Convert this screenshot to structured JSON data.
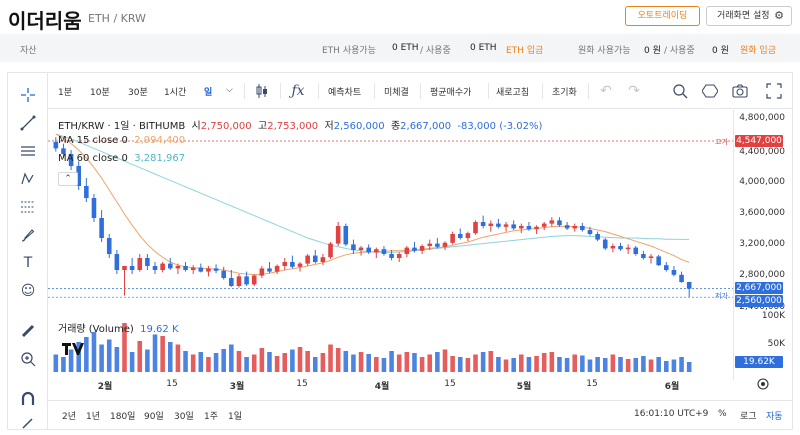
{
  "header": {
    "title": "이더리움",
    "pair": "ETH / KRW",
    "auto_trade_label": "오토트레이딩",
    "settings_label": "거래화면 설정"
  },
  "asset_bar": {
    "label": "자산",
    "eth_available_label": "ETH 사용가능",
    "eth_available_value": "0 ETH",
    "eth_in_use_label": "/ 사용중",
    "eth_in_use_value": "0 ETH",
    "eth_deposit_label": "ETH 입금",
    "krw_available_label": "원화 사용가능",
    "krw_available_value": "0 원",
    "krw_in_use_label": "/ 사용중",
    "krw_in_use_value": "0 원",
    "krw_deposit_label": "원화 입금"
  },
  "toolbar": {
    "intervals": [
      "1분",
      "10분",
      "30분",
      "1시간",
      "일"
    ],
    "active_interval": "일",
    "buttons": [
      "예측차트",
      "미체결",
      "평균매수가",
      "새로고침",
      "초기화"
    ]
  },
  "legend": {
    "symbol": "ETH/KRW · 1일 · BITHUMB",
    "open_label": "시",
    "open": "2,750,000",
    "high_label": "고",
    "high": "2,753,000",
    "low_label": "저",
    "low": "2,560,000",
    "close_label": "종",
    "close": "2,667,000",
    "change": "-83,000 (-3.02%)",
    "ma15_label": "MA 15 close 0",
    "ma15_value": "2,994,400",
    "ma60_label": "MA 60 close 0",
    "ma60_value": "3,281,967",
    "volume_label": "거래량 (Volume)",
    "volume_value": "19.62 K"
  },
  "price_axis": {
    "ticks": [
      "4,800,000",
      "4,400,000",
      "4,000,000",
      "3,600,000",
      "3,200,000",
      "2,800,000",
      "2,400,000"
    ],
    "high_tag": "4,547,000",
    "high_tag_label": "고가",
    "close_tag": "2,667,000",
    "low_tag": "2,560,000",
    "low_tag_label": "저가"
  },
  "volume_axis": {
    "ticks": [
      "100K",
      "50K"
    ],
    "current_tag": "19.62K"
  },
  "time_axis": {
    "ticks": [
      "2월",
      "15",
      "3월",
      "15",
      "4월",
      "15",
      "5월",
      "15",
      "6월"
    ]
  },
  "bottom_bar": {
    "ranges": [
      "2년",
      "1년",
      "180일",
      "90일",
      "30일",
      "1주",
      "1일"
    ],
    "clock": "16:01:10 UTC+9",
    "percent_label": "%",
    "log_label": "로그",
    "auto_label": "자동"
  },
  "colors": {
    "up": "#e04141",
    "down": "#2f6fdc",
    "accent": "#e8821e",
    "ma15": "#f0a46a",
    "ma60": "#8fd3dc"
  },
  "chart_data": {
    "type": "candlestick",
    "series_name": "ETH/KRW",
    "ylim": [
      2400000,
      4800000
    ],
    "candles": [
      [
        4500000,
        4560000,
        4380000,
        4420000
      ],
      [
        4420000,
        4480000,
        4300000,
        4350000
      ],
      [
        4350000,
        4400000,
        4150000,
        4200000
      ],
      [
        4200000,
        4260000,
        3900000,
        3950000
      ],
      [
        3950000,
        4050000,
        3750000,
        3800000
      ],
      [
        3800000,
        3850000,
        3500000,
        3550000
      ],
      [
        3550000,
        3650000,
        3250000,
        3300000
      ],
      [
        3300000,
        3350000,
        3050000,
        3100000
      ],
      [
        3100000,
        3150000,
        2850000,
        2900000
      ],
      [
        2900000,
        2950000,
        2580000,
        2950000
      ],
      [
        2950000,
        3050000,
        2850000,
        2900000
      ],
      [
        2900000,
        3100000,
        2880000,
        3050000
      ],
      [
        3050000,
        3100000,
        2900000,
        2950000
      ],
      [
        2950000,
        3000000,
        2850000,
        2900000
      ],
      [
        2900000,
        3000000,
        2870000,
        2980000
      ],
      [
        2980000,
        3050000,
        2900000,
        2920000
      ],
      [
        2920000,
        2980000,
        2850000,
        2950000
      ],
      [
        2950000,
        3000000,
        2880000,
        2900000
      ],
      [
        2900000,
        2960000,
        2850000,
        2930000
      ],
      [
        2930000,
        2980000,
        2870000,
        2880000
      ],
      [
        2880000,
        2950000,
        2820000,
        2920000
      ],
      [
        2920000,
        2970000,
        2860000,
        2890000
      ],
      [
        2890000,
        2940000,
        2780000,
        2800000
      ],
      [
        2800000,
        2900000,
        2690000,
        2700000
      ],
      [
        2700000,
        2850000,
        2680000,
        2820000
      ],
      [
        2820000,
        2880000,
        2700000,
        2720000
      ],
      [
        2720000,
        2850000,
        2700000,
        2830000
      ],
      [
        2830000,
        2950000,
        2800000,
        2920000
      ],
      [
        2920000,
        3000000,
        2860000,
        2880000
      ],
      [
        2880000,
        2970000,
        2850000,
        2950000
      ],
      [
        2950000,
        3050000,
        2900000,
        3000000
      ],
      [
        3000000,
        3080000,
        2920000,
        2940000
      ],
      [
        2940000,
        3000000,
        2880000,
        2980000
      ],
      [
        2980000,
        3100000,
        2950000,
        3080000
      ],
      [
        3080000,
        3150000,
        2980000,
        3000000
      ],
      [
        3000000,
        3100000,
        2960000,
        3060000
      ],
      [
        3060000,
        3250000,
        3040000,
        3230000
      ],
      [
        3230000,
        3500000,
        3200000,
        3450000
      ],
      [
        3450000,
        3480000,
        3200000,
        3220000
      ],
      [
        3220000,
        3280000,
        3100000,
        3150000
      ],
      [
        3150000,
        3200000,
        3080000,
        3180000
      ],
      [
        3180000,
        3220000,
        3100000,
        3120000
      ],
      [
        3120000,
        3180000,
        3050000,
        3160000
      ],
      [
        3160000,
        3200000,
        3080000,
        3100000
      ],
      [
        3100000,
        3150000,
        3020000,
        3050000
      ],
      [
        3050000,
        3120000,
        3000000,
        3100000
      ],
      [
        3100000,
        3200000,
        3060000,
        3180000
      ],
      [
        3180000,
        3250000,
        3120000,
        3140000
      ],
      [
        3140000,
        3220000,
        3100000,
        3200000
      ],
      [
        3200000,
        3280000,
        3150000,
        3230000
      ],
      [
        3230000,
        3300000,
        3170000,
        3190000
      ],
      [
        3190000,
        3260000,
        3150000,
        3240000
      ],
      [
        3240000,
        3380000,
        3220000,
        3350000
      ],
      [
        3350000,
        3420000,
        3280000,
        3300000
      ],
      [
        3300000,
        3380000,
        3260000,
        3360000
      ],
      [
        3360000,
        3520000,
        3340000,
        3500000
      ],
      [
        3500000,
        3580000,
        3420000,
        3450000
      ],
      [
        3450000,
        3520000,
        3380000,
        3480000
      ],
      [
        3480000,
        3540000,
        3420000,
        3440000
      ],
      [
        3440000,
        3500000,
        3380000,
        3470000
      ],
      [
        3470000,
        3520000,
        3400000,
        3420000
      ],
      [
        3420000,
        3480000,
        3360000,
        3450000
      ],
      [
        3450000,
        3500000,
        3390000,
        3410000
      ],
      [
        3410000,
        3460000,
        3350000,
        3440000
      ],
      [
        3440000,
        3500000,
        3400000,
        3480000
      ],
      [
        3480000,
        3560000,
        3440000,
        3520000
      ],
      [
        3520000,
        3560000,
        3440000,
        3460000
      ],
      [
        3460000,
        3500000,
        3400000,
        3420000
      ],
      [
        3420000,
        3480000,
        3380000,
        3450000
      ],
      [
        3450000,
        3490000,
        3380000,
        3400000
      ],
      [
        3400000,
        3440000,
        3330000,
        3350000
      ],
      [
        3350000,
        3380000,
        3260000,
        3280000
      ],
      [
        3280000,
        3300000,
        3150000,
        3170000
      ],
      [
        3170000,
        3230000,
        3120000,
        3200000
      ],
      [
        3200000,
        3240000,
        3140000,
        3160000
      ],
      [
        3160000,
        3220000,
        3100000,
        3180000
      ],
      [
        3180000,
        3200000,
        3080000,
        3100000
      ],
      [
        3100000,
        3140000,
        3030000,
        3050000
      ],
      [
        3050000,
        3100000,
        2980000,
        3070000
      ],
      [
        3070000,
        3090000,
        2950000,
        2960000
      ],
      [
        2960000,
        3000000,
        2880000,
        2900000
      ],
      [
        2900000,
        2950000,
        2820000,
        2840000
      ],
      [
        2840000,
        2880000,
        2740000,
        2750000
      ],
      [
        2750000,
        2753000,
        2560000,
        2667000
      ]
    ],
    "volume": [
      35,
      30,
      45,
      60,
      70,
      80,
      55,
      65,
      50,
      98,
      40,
      62,
      45,
      75,
      72,
      60,
      55,
      42,
      35,
      40,
      30,
      38,
      46,
      55,
      42,
      30,
      35,
      48,
      40,
      32,
      38,
      45,
      50,
      42,
      30,
      38,
      55,
      48,
      42,
      35,
      40,
      36,
      30,
      28,
      42,
      35,
      40,
      38,
      30,
      35,
      40,
      45,
      32,
      30,
      28,
      35,
      40,
      42,
      30,
      25,
      28,
      35,
      30,
      32,
      38,
      40,
      30,
      28,
      35,
      33,
      25,
      30,
      28,
      35,
      30,
      26,
      28,
      32,
      25,
      30,
      22,
      25,
      30,
      20
    ],
    "ma15": [
      4600000,
      4550000,
      4480000,
      4400000,
      4300000,
      4180000,
      4050000,
      3900000,
      3750000,
      3600000,
      3460000,
      3330000,
      3220000,
      3130000,
      3060000,
      3000000,
      2960000,
      2940000,
      2930000,
      2920000,
      2915000,
      2910000,
      2900000,
      2880000,
      2860000,
      2850000,
      2840000,
      2845000,
      2860000,
      2880000,
      2900000,
      2915000,
      2930000,
      2950000,
      2970000,
      2990000,
      3020000,
      3060000,
      3090000,
      3110000,
      3120000,
      3125000,
      3130000,
      3135000,
      3140000,
      3140000,
      3145000,
      3150000,
      3160000,
      3170000,
      3180000,
      3190000,
      3210000,
      3230000,
      3250000,
      3280000,
      3310000,
      3330000,
      3350000,
      3370000,
      3390000,
      3400000,
      3410000,
      3420000,
      3430000,
      3440000,
      3445000,
      3445000,
      3440000,
      3435000,
      3420000,
      3400000,
      3380000,
      3350000,
      3320000,
      3290000,
      3260000,
      3230000,
      3200000,
      3160000,
      3120000,
      3080000,
      3030000,
      2994400
    ],
    "ma60": [
      4600000,
      4570000,
      4540000,
      4500000,
      4460000,
      4420000,
      4380000,
      4340000,
      4300000,
      4260000,
      4220000,
      4180000,
      4140000,
      4100000,
      4060000,
      4020000,
      3980000,
      3940000,
      3900000,
      3860000,
      3820000,
      3780000,
      3740000,
      3700000,
      3660000,
      3620000,
      3580000,
      3540000,
      3500000,
      3460000,
      3420000,
      3380000,
      3340000,
      3300000,
      3270000,
      3240000,
      3210000,
      3190000,
      3170000,
      3150000,
      3140000,
      3130000,
      3120000,
      3120000,
      3120000,
      3125000,
      3130000,
      3140000,
      3150000,
      3160000,
      3170000,
      3180000,
      3190000,
      3200000,
      3210000,
      3220000,
      3230000,
      3240000,
      3250000,
      3260000,
      3270000,
      3280000,
      3290000,
      3300000,
      3310000,
      3320000,
      3325000,
      3330000,
      3330000,
      3325000,
      3320000,
      3315000,
      3310000,
      3305000,
      3300000,
      3300000,
      3300000,
      3295000,
      3290000,
      3290000,
      3285000,
      3285000,
      3282000,
      3281967
    ]
  }
}
